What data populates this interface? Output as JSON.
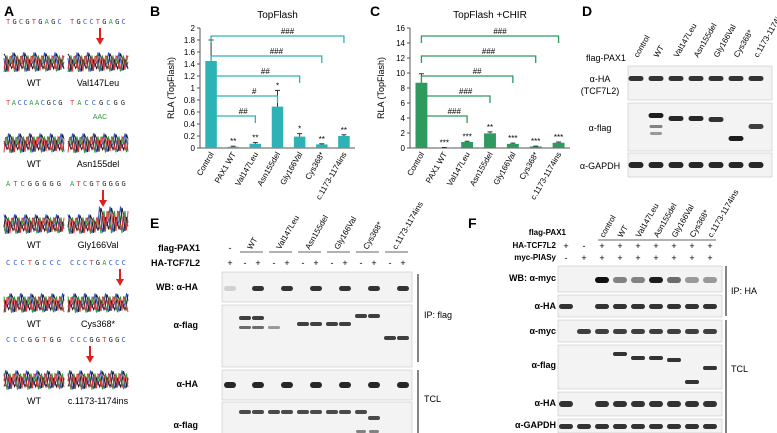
{
  "panels": {
    "A": {
      "letter": "A",
      "rows": [
        {
          "wt_seq": "TGCGTGAGC",
          "mut_seq": "TGCCTGAGC",
          "wt_label": "WT",
          "mut_label": "Val147Leu",
          "extra_label": ""
        },
        {
          "wt_seq": "TACCAACGCG",
          "mut_seq": "TACCGCGG",
          "wt_label": "WT",
          "mut_label": "Asn155del",
          "extra_label": "AAC"
        },
        {
          "wt_seq": "ATCGGGGG",
          "mut_seq": "ATCGTGGGG",
          "wt_label": "WT",
          "mut_label": "Gly166Val",
          "extra_label": ""
        },
        {
          "wt_seq": "CCCTGCCC",
          "mut_seq": "CCCTGACCC",
          "wt_label": "WT",
          "mut_label": "Cys368*",
          "extra_label": ""
        },
        {
          "wt_seq": "CCCGGTGG",
          "mut_seq": "CCCGGTGGC",
          "wt_label": "WT",
          "mut_label": "c.1173-1174ins",
          "extra_label": ""
        }
      ]
    },
    "B": {
      "letter": "B",
      "sig_labels": [
        "###",
        "###",
        "##",
        "#",
        "##"
      ]
    },
    "C": {
      "letter": "C",
      "sig_labels": [
        "###",
        "###",
        "##",
        "###",
        "###"
      ]
    },
    "D": {
      "letter": "D",
      "header": "flag-PAX1",
      "lanes": [
        "control",
        "WT",
        "Val147Leu",
        "Asn155del",
        "Gly166Val",
        "Cys368*",
        "c.1173-1174ins"
      ],
      "blots": [
        "α-HA\n(TCF7L2)",
        "α-flag",
        "α-GAPDH"
      ]
    },
    "E": {
      "letter": "E",
      "row1_label": "flag-PAX1",
      "row2_label": "HA-TCF7L2",
      "groups": [
        "WT",
        "Val147Leu",
        "Asn155del",
        "Gly166Val",
        "Cys368*",
        "c.1173-1174ins"
      ],
      "row1_first": "-",
      "row2_signs": [
        "+",
        "-",
        "+",
        "-",
        "+",
        "-",
        "+",
        "-",
        "+",
        "-",
        "+",
        "-",
        "+"
      ],
      "blots": [
        "WB: α-HA",
        "α-flag",
        "α-HA",
        "α-flag"
      ],
      "sections": [
        "IP: flag",
        "TCL"
      ]
    },
    "F": {
      "letter": "F",
      "row_labels": [
        "flag-PAX1",
        "HA-TCF7L2",
        "myc-PIASy"
      ],
      "lanes": [
        "control",
        "WT",
        "Val147Leu",
        "Asn155del",
        "Gly166Val",
        "Cys368*",
        "c.1173-1174ins"
      ],
      "row1_first": [
        "-",
        "-"
      ],
      "row2_signs": [
        "+",
        "-",
        "+",
        "+",
        "+",
        "+",
        "+",
        "+",
        "+"
      ],
      "row3_signs": [
        "-",
        "+",
        "+",
        "+",
        "+",
        "+",
        "+",
        "+",
        "+"
      ],
      "blots": [
        "WB: α-myc",
        "α-HA",
        "α-myc",
        "α-flag",
        "α-HA",
        "α-GAPDH"
      ],
      "sections": [
        "IP: HA",
        "TCL"
      ]
    }
  },
  "chart_data": [
    {
      "type": "bar",
      "title": "TopFlash",
      "ylabel": "RLA (TopFlash)",
      "categories": [
        "Control",
        "PAX1 WT",
        "Val147Leu",
        "Asn155del",
        "Gly166Val",
        "Cys368*",
        "c.1173-1174ins"
      ],
      "values": [
        1.45,
        0.02,
        0.07,
        0.69,
        0.19,
        0.06,
        0.2
      ],
      "errors": [
        0.35,
        0.01,
        0.02,
        0.27,
        0.05,
        0.01,
        0.02
      ],
      "bar_labels": [
        "",
        "**",
        "**",
        "*",
        "*",
        "**",
        "**"
      ],
      "yticks": [
        "0",
        "0.2",
        "0.4",
        "0.6",
        "0.8",
        "1",
        "1.2",
        "1.4",
        "1.6",
        "1.8",
        "2"
      ],
      "ylim": [
        0,
        2
      ],
      "color": "#2db3b6"
    },
    {
      "type": "bar",
      "title": "TopFlash +CHIR",
      "ylabel": "RLA (TopFlash)",
      "categories": [
        "Control",
        "PAX1 WT",
        "Val147Leu",
        "Asn155del",
        "Gly166Val",
        "Cys368*",
        "c.1173-1174ins"
      ],
      "values": [
        8.7,
        0.05,
        0.8,
        1.95,
        0.55,
        0.2,
        0.7
      ],
      "errors": [
        1.2,
        0.02,
        0.1,
        0.2,
        0.1,
        0.05,
        0.1
      ],
      "bar_labels": [
        "",
        "***",
        "***",
        "**",
        "***",
        "***",
        "***"
      ],
      "yticks": [
        "0",
        "2",
        "4",
        "6",
        "8",
        "10",
        "12",
        "14",
        "16"
      ],
      "ylim": [
        0,
        16
      ],
      "color": "#2e9a5f"
    }
  ]
}
